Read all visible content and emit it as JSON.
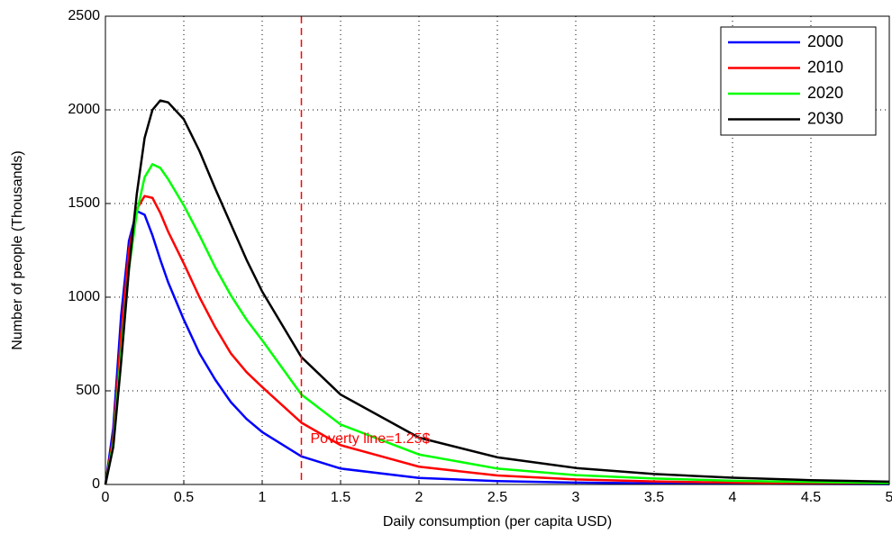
{
  "chart_data": {
    "type": "line",
    "xlabel": "Daily consumption (per capita USD)",
    "ylabel": "Number of people (Thousands)",
    "x": [
      0,
      0.05,
      0.1,
      0.15,
      0.2,
      0.25,
      0.3,
      0.35,
      0.4,
      0.5,
      0.6,
      0.7,
      0.8,
      0.9,
      1,
      1.25,
      1.5,
      2,
      2.5,
      3,
      3.5,
      4,
      4.5,
      5
    ],
    "series": [
      {
        "name": "2000",
        "color": "#0000ff",
        "values": [
          0,
          300,
          900,
          1300,
          1460,
          1440,
          1330,
          1200,
          1080,
          880,
          700,
          560,
          440,
          350,
          280,
          150,
          85,
          35,
          18,
          10,
          6,
          4,
          3,
          2
        ]
      },
      {
        "name": "2010",
        "color": "#ff0000",
        "values": [
          0,
          250,
          800,
          1250,
          1470,
          1540,
          1530,
          1450,
          1350,
          1180,
          1000,
          840,
          700,
          600,
          520,
          330,
          210,
          95,
          48,
          27,
          16,
          10,
          6,
          4
        ]
      },
      {
        "name": "2020",
        "color": "#00ff00",
        "values": [
          0,
          220,
          700,
          1150,
          1450,
          1640,
          1710,
          1690,
          1630,
          1490,
          1330,
          1160,
          1010,
          880,
          770,
          480,
          320,
          160,
          85,
          50,
          32,
          20,
          13,
          8
        ]
      },
      {
        "name": "2030",
        "color": "#000000",
        "values": [
          0,
          200,
          650,
          1150,
          1550,
          1850,
          2000,
          2050,
          2040,
          1950,
          1780,
          1580,
          1390,
          1200,
          1030,
          680,
          480,
          250,
          145,
          88,
          56,
          36,
          23,
          15
        ]
      }
    ],
    "vline": {
      "x": 1.25,
      "color": "#ff0000",
      "label": "Poverty line=1.25$"
    },
    "xlim": [
      0,
      5
    ],
    "xticks": [
      0,
      0.5,
      1,
      1.5,
      2,
      2.5,
      3,
      3.5,
      4,
      4.5,
      5
    ],
    "ylim": [
      0,
      2500
    ],
    "yticks": [
      0,
      500,
      1000,
      1500,
      2000,
      2500
    ],
    "grid": true,
    "legend": "upper right"
  }
}
